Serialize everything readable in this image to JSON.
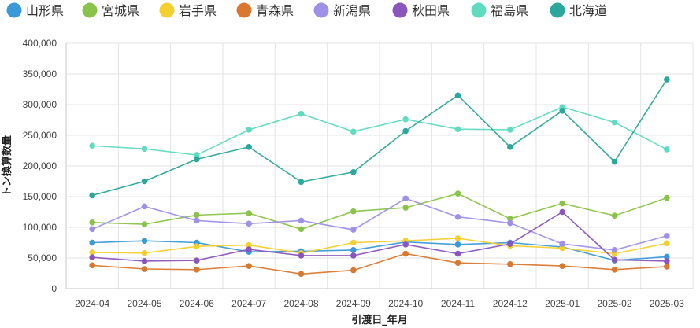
{
  "chart_data": {
    "type": "line",
    "xlabel": "引渡日_年月",
    "ylabel": "トン換算数量",
    "ylim": [
      0,
      400000
    ],
    "yticks": [
      0,
      50000,
      100000,
      150000,
      200000,
      250000,
      300000,
      350000,
      400000
    ],
    "ytick_labels": [
      "0",
      "50,000",
      "100,000",
      "150,000",
      "200,000",
      "250,000",
      "300,000",
      "350,000",
      "400,000"
    ],
    "grid": true,
    "legend_position": "top-left",
    "categories": [
      "2024-04",
      "2024-05",
      "2024-06",
      "2024-07",
      "2024-08",
      "2024-09",
      "2024-10",
      "2024-11",
      "2024-12",
      "2025-01",
      "2025-02",
      "2025-03"
    ],
    "series": [
      {
        "name": "山形県",
        "color": "#3a9ad9",
        "values": [
          75000,
          78000,
          75000,
          60000,
          61000,
          63000,
          76000,
          72000,
          75000,
          68000,
          46000,
          52000
        ]
      },
      {
        "name": "宮城県",
        "color": "#8bc34a",
        "values": [
          108000,
          105000,
          120000,
          123000,
          97000,
          126000,
          132000,
          155000,
          114000,
          139000,
          119000,
          148000
        ]
      },
      {
        "name": "岩手県",
        "color": "#f5cf2d",
        "values": [
          59000,
          58000,
          69000,
          71000,
          58000,
          75000,
          78000,
          82000,
          70000,
          66000,
          57000,
          74000
        ]
      },
      {
        "name": "青森県",
        "color": "#d97831",
        "values": [
          38000,
          32000,
          31000,
          37000,
          24000,
          30000,
          57000,
          42000,
          40000,
          37000,
          31000,
          36000
        ]
      },
      {
        "name": "新潟県",
        "color": "#9f90e8",
        "values": [
          97000,
          134000,
          111000,
          106000,
          111000,
          96000,
          147000,
          117000,
          107000,
          73000,
          63000,
          86000
        ]
      },
      {
        "name": "秋田県",
        "color": "#8a56bd",
        "values": [
          51000,
          45000,
          46000,
          64000,
          54000,
          54000,
          72000,
          57000,
          73000,
          125000,
          47000,
          45000
        ]
      },
      {
        "name": "福島県",
        "color": "#5fdcc0",
        "values": [
          233000,
          228000,
          218000,
          259000,
          285000,
          256000,
          276000,
          260000,
          259000,
          296000,
          271000,
          227000
        ]
      },
      {
        "name": "北海道",
        "color": "#2ba79b",
        "values": [
          152000,
          175000,
          211000,
          231000,
          174000,
          190000,
          257000,
          315000,
          231000,
          290000,
          207000,
          341000
        ]
      }
    ]
  }
}
